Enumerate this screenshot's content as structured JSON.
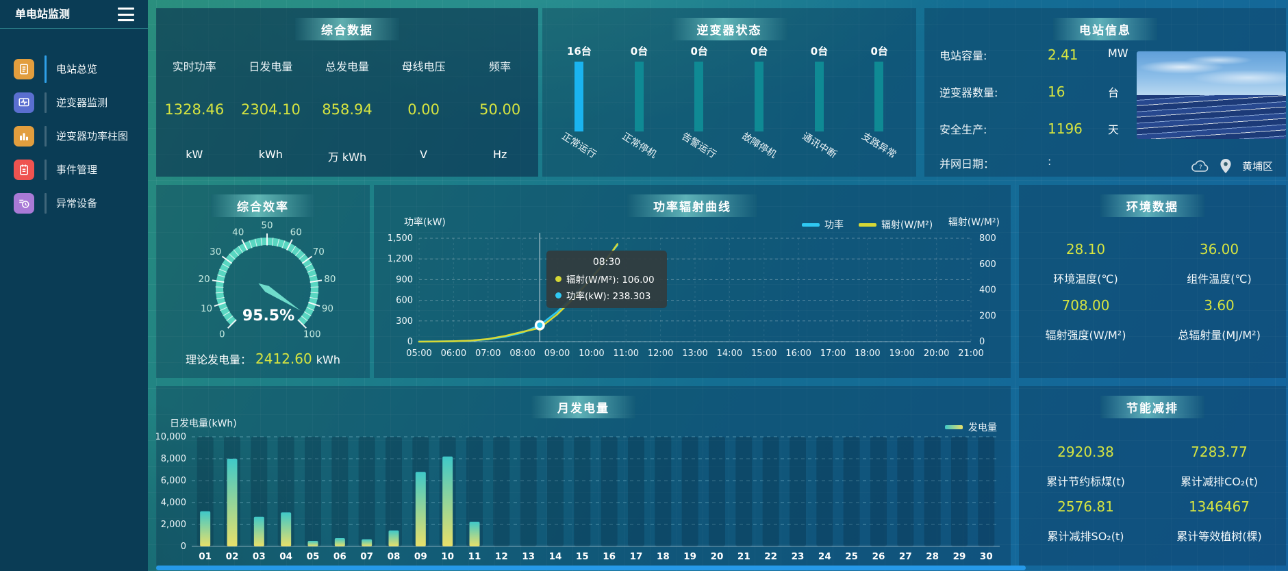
{
  "app": {
    "title": "单电站监测"
  },
  "colors": {
    "accent_value": "#d6e440",
    "inverter_bar_active": "#1ab4f0",
    "inverter_bar_idle": "#0f8a94",
    "power_line": "#2fc8f2",
    "radiation_line": "#d6d835",
    "bar_gradient_top": "#3fc8c8",
    "bar_gradient_bottom": "#e8e06a",
    "gauge": "#59d6c1",
    "scrollbar": "#2699e8"
  },
  "sidebar": {
    "items": [
      {
        "label": "电站总览",
        "icon": "station-overview-icon",
        "color": "#e29e3e",
        "active": true
      },
      {
        "label": "逆变器监测",
        "icon": "inverter-monitor-icon",
        "color": "#5a6fd0",
        "active": false
      },
      {
        "label": "逆变器功率柱图",
        "icon": "inverter-power-bars-icon",
        "color": "#e29e3e",
        "active": false
      },
      {
        "label": "事件管理",
        "icon": "event-management-icon",
        "color": "#ef5350",
        "active": false
      },
      {
        "label": "异常设备",
        "icon": "abnormal-device-icon",
        "color": "#a97ad6",
        "active": false
      }
    ]
  },
  "overview": {
    "title": "综合数据",
    "metrics": [
      {
        "label": "实时功率",
        "value": "1328.46",
        "unit": "kW"
      },
      {
        "label": "日发电量",
        "value": "2304.10",
        "unit": "kWh"
      },
      {
        "label": "总发电量",
        "value": "858.94",
        "unit": "万 kWh"
      },
      {
        "label": "母线电压",
        "value": "0.00",
        "unit": "V"
      },
      {
        "label": "频率",
        "value": "50.00",
        "unit": "Hz"
      }
    ]
  },
  "inverter": {
    "title": "逆变器状态",
    "items": [
      {
        "count": "16台",
        "label": "正常运行",
        "highlight": true
      },
      {
        "count": "0台",
        "label": "正常停机",
        "highlight": false
      },
      {
        "count": "0台",
        "label": "告警运行",
        "highlight": false
      },
      {
        "count": "0台",
        "label": "故障停机",
        "highlight": false
      },
      {
        "count": "0台",
        "label": "通讯中断",
        "highlight": false
      },
      {
        "count": "0台",
        "label": "支路异常",
        "highlight": false
      }
    ]
  },
  "station": {
    "title": "电站信息",
    "rows": [
      {
        "label": "电站容量:",
        "value": "2.41",
        "unit": "MW",
        "muted": false
      },
      {
        "label": "逆变器数量:",
        "value": "16",
        "unit": "台",
        "muted": false
      },
      {
        "label": "安全生产:",
        "value": "1196",
        "unit": "天",
        "muted": false
      },
      {
        "label": "并网日期：",
        "value": ":",
        "unit": "",
        "muted": true
      }
    ],
    "location": {
      "district": "黄埔区"
    }
  },
  "efficiency": {
    "title": "综合效率",
    "theory_label": "理论发电量：",
    "theory_value": "2412.60",
    "theory_unit": "kWh"
  },
  "environment": {
    "title": "环境数据",
    "cells": [
      {
        "value": "28.10",
        "label": "环境温度(℃)"
      },
      {
        "value": "36.00",
        "label": "组件温度(℃)"
      },
      {
        "value": "708.00",
        "label": "辐射强度(W/M²)"
      },
      {
        "value": "3.60",
        "label": "总辐射量(MJ/M²)"
      }
    ]
  },
  "savings": {
    "title": "节能减排",
    "cells": [
      {
        "value": "2920.38",
        "label": "累计节约标煤(t)"
      },
      {
        "value": "7283.77",
        "label": "累计减排CO₂(t)"
      },
      {
        "value": "2576.81",
        "label": "累计减排SO₂(t)"
      },
      {
        "value": "1346467",
        "label": "累计等效植树(棵)"
      }
    ]
  },
  "chart_data": [
    {
      "type": "line",
      "title": "功率辐射曲线",
      "x_labels": [
        "05:00",
        "06:00",
        "07:00",
        "08:00",
        "09:00",
        "10:00",
        "11:00",
        "12:00",
        "13:00",
        "14:00",
        "15:00",
        "16:00",
        "17:00",
        "18:00",
        "19:00",
        "20:00",
        "21:00"
      ],
      "x_range_hours": [
        5,
        21
      ],
      "left_axis": {
        "label": "功率(kW)",
        "ticks": [
          0,
          300,
          600,
          900,
          1200,
          1500
        ],
        "max": 1500
      },
      "right_axis": {
        "label": "辐射(W/M²)",
        "ticks": [
          0,
          200,
          400,
          600,
          800
        ],
        "max": 800
      },
      "series": [
        {
          "name": "功率",
          "axis": "left",
          "color": "#2fc8f2",
          "x": [
            5,
            5.5,
            6,
            6.5,
            7,
            7.5,
            8,
            8.5,
            9,
            9.5,
            10,
            10.25,
            10.5,
            10.75
          ],
          "y": [
            2,
            3,
            6,
            14,
            34,
            72,
            130,
            238.303,
            430,
            670,
            940,
            1080,
            1250,
            1400
          ]
        },
        {
          "name": "辐射(W/M²)",
          "axis": "right",
          "color": "#d6d835",
          "x": [
            5,
            5.5,
            6,
            6.5,
            7,
            7.5,
            8,
            8.5,
            9,
            9.5,
            10,
            10.25,
            10.5,
            10.75
          ],
          "y": [
            0,
            1,
            3,
            8,
            20,
            44,
            76,
            106,
            210,
            340,
            490,
            570,
            660,
            755
          ]
        }
      ],
      "legend": [
        {
          "name": "功率",
          "color": "#2fc8f2"
        },
        {
          "name": "辐射(W/M²)",
          "color": "#d6d835"
        }
      ],
      "crosshair": {
        "x": 8.5
      },
      "tooltip": {
        "title": "08:30",
        "rows": [
          {
            "color": "#d6d835",
            "label": "辐射(W/M²): 106.00"
          },
          {
            "color": "#2fc8f2",
            "label": "功率(kW): 238.303"
          }
        ]
      }
    },
    {
      "type": "bar",
      "title": "月发电量",
      "ylabel": "日发电量(kWh)",
      "ylim": [
        0,
        10000
      ],
      "yticks": [
        0,
        2000,
        4000,
        6000,
        8000,
        10000
      ],
      "legend": "发电量",
      "categories": [
        "01",
        "02",
        "03",
        "04",
        "05",
        "06",
        "07",
        "08",
        "09",
        "10",
        "11",
        "12",
        "13",
        "14",
        "15",
        "16",
        "17",
        "18",
        "19",
        "20",
        "21",
        "22",
        "23",
        "24",
        "25",
        "26",
        "27",
        "28",
        "29",
        "30"
      ],
      "values": [
        3200,
        8000,
        2700,
        3100,
        500,
        750,
        650,
        1450,
        6800,
        8200,
        2250,
        0,
        0,
        0,
        0,
        0,
        0,
        0,
        0,
        0,
        0,
        0,
        0,
        0,
        0,
        0,
        0,
        0,
        0,
        0
      ]
    },
    {
      "type": "gauge",
      "title": "综合效率",
      "min": 0,
      "max": 100,
      "value": 95.5,
      "display": "95.5%",
      "tick_step": 10
    },
    {
      "type": "bar",
      "title": "逆变器状态",
      "categories": [
        "正常运行",
        "正常停机",
        "告警运行",
        "故障停机",
        "通讯中断",
        "支路异常"
      ],
      "values": [
        16,
        0,
        0,
        0,
        0,
        0
      ],
      "unit": "台"
    }
  ]
}
